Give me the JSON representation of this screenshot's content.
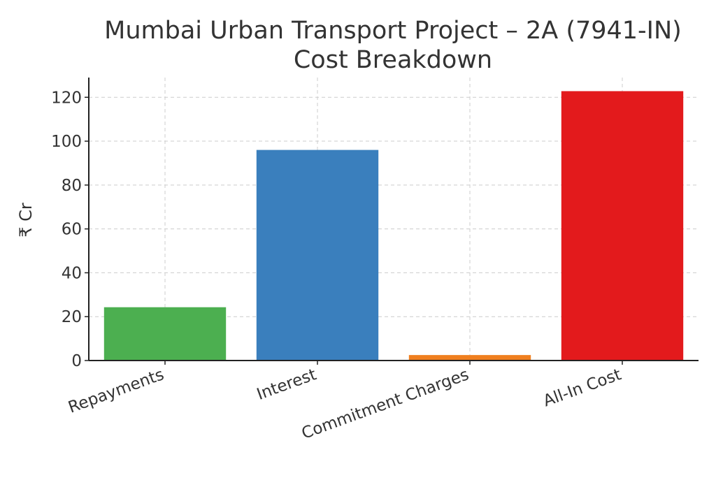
{
  "chart_data": {
    "type": "bar",
    "title": [
      "Mumbai Urban Transport Project – 2A (7941-IN)",
      "Cost Breakdown"
    ],
    "xlabel": "",
    "ylabel": "₹ Cr",
    "categories": [
      "Repayments",
      "Interest",
      "Commitment Charges",
      "All-In Cost"
    ],
    "values": [
      24.3,
      96.0,
      2.5,
      122.8
    ],
    "colors": [
      "#4caf50",
      "#3a7fbd",
      "#f07f1f",
      "#e31a1c"
    ],
    "ylim": [
      0,
      129
    ],
    "yticks": [
      0,
      20,
      40,
      60,
      80,
      100,
      120
    ],
    "grid": true
  }
}
